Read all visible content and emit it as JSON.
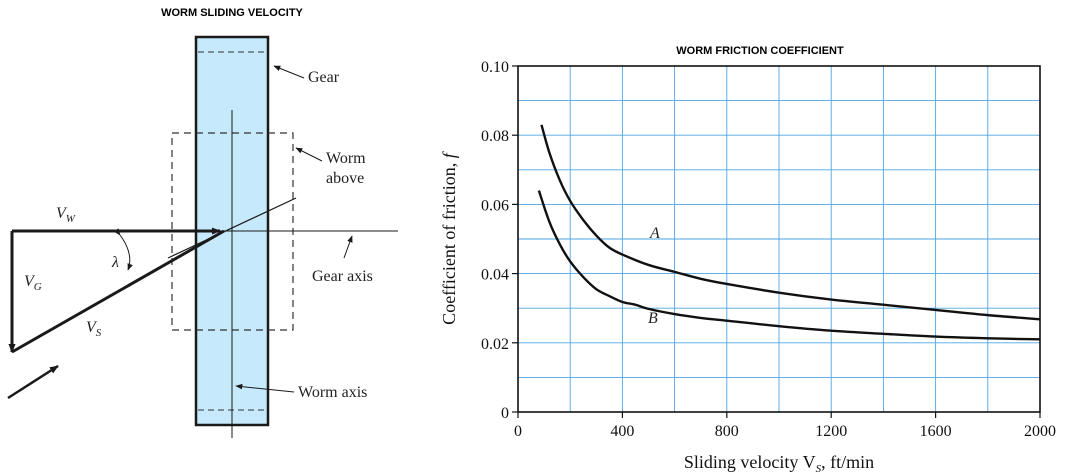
{
  "left_panel": {
    "title": "WORM SLIDING VELOCITY",
    "labels": {
      "gear": "Gear",
      "worm_line1": "Worm",
      "worm_line2": "above",
      "gear_axis": "Gear axis",
      "worm_axis": "Worm axis",
      "vw_main": "V",
      "vw_sub": "W",
      "vg_main": "V",
      "vg_sub": "G",
      "vs_main": "V",
      "vs_sub": "S",
      "lambda": "λ"
    },
    "colors": {
      "gear_fill": "#c6e9fb",
      "line": "#1a1a1a"
    }
  },
  "chart_data": {
    "type": "line",
    "title": "WORM FRICTION COEFFICIENT",
    "xlabel_main": "Sliding velocity V",
    "xlabel_sub": "S",
    "xlabel_unit": ", ft/min",
    "ylabel_main": "Coefficient of friction, ",
    "ylabel_var": "f",
    "xlim": [
      0,
      2000
    ],
    "ylim": [
      0,
      0.1
    ],
    "x_ticks": [
      "0",
      "400",
      "800",
      "1200",
      "1600",
      "2000"
    ],
    "y_ticks": [
      "0",
      "0.02",
      "0.04",
      "0.06",
      "0.08",
      "0.10"
    ],
    "grid": true,
    "series": [
      {
        "name": "A",
        "x": [
          90,
          120,
          160,
          200,
          250,
          300,
          350,
          400,
          500,
          600,
          700,
          800,
          1000,
          1200,
          1400,
          1600,
          1800,
          2000
        ],
        "y": [
          0.083,
          0.075,
          0.067,
          0.061,
          0.0555,
          0.051,
          0.0475,
          0.0455,
          0.0425,
          0.0405,
          0.0385,
          0.037,
          0.0345,
          0.0325,
          0.031,
          0.0295,
          0.028,
          0.0268
        ]
      },
      {
        "name": "B",
        "x": [
          80,
          120,
          160,
          200,
          250,
          300,
          350,
          400,
          450,
          500,
          600,
          700,
          800,
          1000,
          1200,
          1400,
          1600,
          1800,
          2000
        ],
        "y": [
          0.064,
          0.055,
          0.0485,
          0.0435,
          0.039,
          0.0355,
          0.0335,
          0.0318,
          0.031,
          0.0298,
          0.0283,
          0.0272,
          0.0264,
          0.0248,
          0.0235,
          0.0226,
          0.0218,
          0.0213,
          0.021
        ]
      }
    ]
  }
}
